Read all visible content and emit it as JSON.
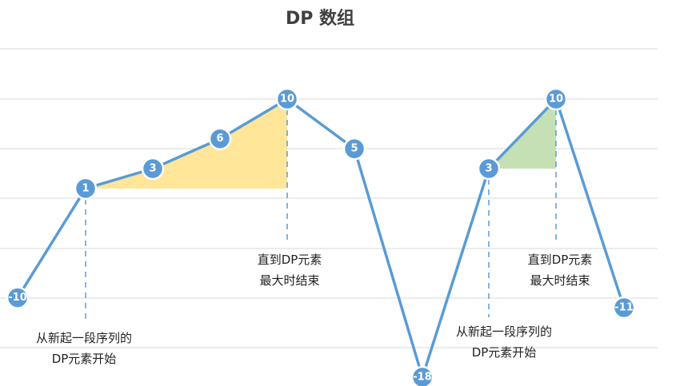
{
  "chart_data": {
    "type": "line",
    "title": "DP 数组",
    "x": [
      0,
      1,
      2,
      3,
      4,
      5,
      6,
      7,
      8,
      9
    ],
    "values": [
      -10,
      1,
      3,
      6,
      10,
      5,
      -18,
      3,
      10,
      -11
    ],
    "labels": [
      "-10",
      "1",
      "3",
      "6",
      "10",
      "5",
      "-18",
      "3",
      "10",
      "-11"
    ],
    "ylim": [
      -18,
      10
    ],
    "grid": true,
    "legend": "none",
    "regions": [
      {
        "from_index": 1,
        "to_index": 4,
        "baseline": 1,
        "color": "#ffe699"
      },
      {
        "from_index": 7,
        "to_index": 8,
        "baseline": 3,
        "color": "#c5e0b4"
      }
    ],
    "annotations": [
      {
        "index": 1,
        "lines": [
          "从新起一段序列的",
          "DP元素开始"
        ]
      },
      {
        "index": 4,
        "lines": [
          "直到DP元素",
          "最大时结束"
        ]
      },
      {
        "index": 7,
        "lines": [
          "从新起一段序列的",
          "DP元素开始"
        ]
      },
      {
        "index": 8,
        "lines": [
          "直到DP元素",
          "最大时结束"
        ]
      }
    ]
  },
  "colors": {
    "line": "#5b9bd5",
    "point": "#5b9bd5",
    "grid": "#d9d9d9"
  }
}
